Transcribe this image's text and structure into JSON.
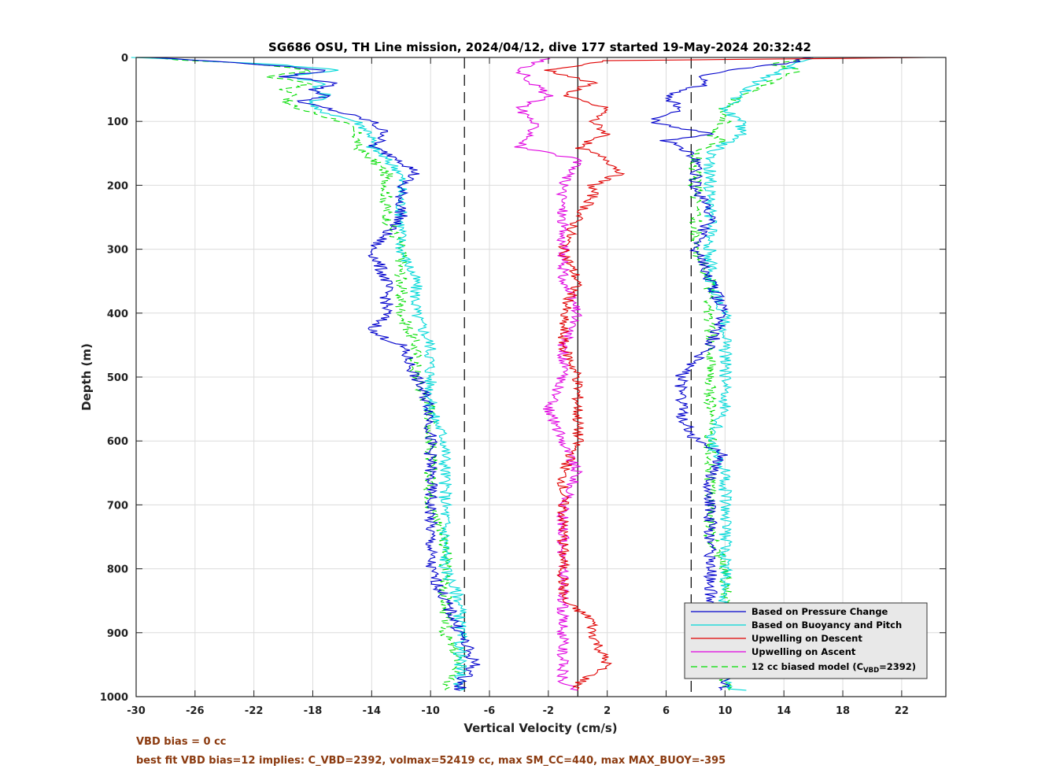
{
  "chart_data": {
    "type": "line",
    "title": "SG686 OSU, TH Line mission, 2024/04/12, dive 177 started 19-May-2024 20:32:42",
    "xlabel": "Vertical Velocity (cm/s)",
    "ylabel": "Depth (m)",
    "xlim": [
      -30,
      25
    ],
    "ylim": [
      0,
      1000
    ],
    "y_reversed": true,
    "x_ticks": [
      -30,
      -26,
      -22,
      -18,
      -14,
      -10,
      -6,
      -2,
      2,
      6,
      10,
      14,
      18,
      22
    ],
    "y_ticks": [
      0,
      100,
      200,
      300,
      400,
      500,
      600,
      700,
      800,
      900,
      1000
    ],
    "grid": true,
    "legend_position": "bottom-right",
    "reference_lines": [
      {
        "x": -7.7,
        "style": "dashed",
        "color": "#000000"
      },
      {
        "x": 0,
        "style": "solid",
        "color": "#000000"
      },
      {
        "x": 7.7,
        "style": "dashed",
        "color": "#000000"
      }
    ],
    "series": [
      {
        "name": "Based on Pressure Change",
        "color": "#0000cc",
        "dash": "solid",
        "down": {
          "depth": [
            0,
            10,
            20,
            30,
            40,
            50,
            60,
            70,
            80,
            100,
            120,
            140,
            160,
            180,
            200,
            250,
            300,
            350,
            400,
            430,
            450,
            500,
            550,
            590,
            600,
            650,
            700,
            750,
            800,
            850,
            900,
            950,
            980,
            990
          ],
          "velocity": [
            -29,
            -22,
            -17,
            -20,
            -16,
            -18,
            -17,
            -19,
            -17,
            -14,
            -13,
            -14,
            -12,
            -11,
            -12,
            -12,
            -14,
            -13,
            -13,
            -14,
            -12,
            -11,
            -10,
            -10,
            -10,
            -10,
            -10,
            -10,
            -10,
            -9,
            -8,
            -7,
            -8,
            -8
          ]
        },
        "up": {
          "depth": [
            990,
            980,
            950,
            900,
            850,
            800,
            750,
            700,
            650,
            620,
            600,
            560,
            540,
            500,
            450,
            400,
            350,
            300,
            250,
            200,
            160,
            140,
            130,
            120,
            100,
            80,
            60,
            40,
            30,
            20,
            10,
            0
          ],
          "velocity": [
            10,
            10,
            10,
            10,
            9,
            9,
            9,
            9,
            9,
            10,
            8,
            7,
            7,
            7,
            9,
            10,
            9,
            8,
            9,
            8,
            8,
            7,
            6,
            9,
            5,
            7,
            6,
            9,
            8,
            10,
            14,
            16
          ]
        }
      },
      {
        "name": "Based on Buoyancy and Pitch",
        "color": "#00d8d8",
        "dash": "solid",
        "down": {
          "depth": [
            0,
            10,
            20,
            30,
            40,
            50,
            60,
            70,
            80,
            100,
            120,
            140,
            160,
            180,
            200,
            250,
            300,
            350,
            400,
            450,
            500,
            550,
            600,
            650,
            700,
            750,
            800,
            850,
            900,
            950,
            980,
            990
          ],
          "velocity": [
            -30,
            -21,
            -16,
            -20,
            -17,
            -18,
            -17,
            -18,
            -18,
            -15,
            -14,
            -14,
            -13,
            -12,
            -12,
            -12,
            -12,
            -11,
            -11,
            -10,
            -10,
            -10,
            -9,
            -9,
            -9,
            -9,
            -9,
            -8,
            -8,
            -8,
            -8,
            -8
          ]
        },
        "up": {
          "depth": [
            990,
            980,
            950,
            900,
            850,
            800,
            750,
            700,
            650,
            600,
            550,
            500,
            450,
            400,
            350,
            300,
            250,
            200,
            150,
            120,
            100,
            80,
            60,
            40,
            30,
            20,
            10,
            0
          ],
          "velocity": [
            11,
            10,
            11,
            11,
            10,
            10,
            10,
            10,
            10,
            9,
            10,
            10,
            10,
            10,
            9,
            9,
            9,
            9,
            9,
            11,
            11,
            10,
            11,
            12,
            13,
            14,
            15,
            16
          ]
        }
      },
      {
        "name": "Upwelling on Descent",
        "color": "#e00000",
        "dash": "solid",
        "depth": [
          0,
          5,
          20,
          40,
          60,
          80,
          100,
          120,
          140,
          160,
          180,
          200,
          220,
          250,
          300,
          350,
          400,
          450,
          500,
          550,
          600,
          650,
          700,
          750,
          800,
          850,
          880,
          900,
          950,
          980,
          990
        ],
        "velocity": [
          24,
          2,
          -2,
          1,
          -1,
          2,
          1,
          2,
          0,
          2,
          3,
          1,
          1,
          0,
          -1,
          0,
          -1,
          -1,
          0,
          0,
          0,
          -1,
          -1,
          -1,
          -1,
          -1,
          1,
          1,
          2,
          0,
          0
        ]
      },
      {
        "name": "Upwelling on Ascent",
        "color": "#e000e0",
        "dash": "solid",
        "depth": [
          0,
          20,
          40,
          60,
          80,
          100,
          120,
          140,
          160,
          200,
          250,
          300,
          350,
          400,
          450,
          500,
          550,
          600,
          650,
          700,
          750,
          800,
          850,
          900,
          950,
          980,
          990
        ],
        "velocity": [
          -2,
          -4,
          -3,
          -2,
          -4,
          -3,
          -3,
          -4,
          0,
          -1,
          -1,
          -1,
          -1,
          0,
          -1,
          -1,
          -2,
          -1,
          0,
          -1,
          -1,
          -1,
          -1,
          -1,
          -1,
          -1,
          0
        ]
      },
      {
        "name": "12 cc biased model (C",
        "name_subscript": "VBD",
        "name_suffix": "=2392)",
        "color": "#00dd00",
        "dash": "dashed",
        "down": {
          "depth": [
            0,
            10,
            20,
            30,
            40,
            50,
            60,
            70,
            80,
            100,
            120,
            140,
            160,
            180,
            200,
            250,
            300,
            350,
            400,
            450,
            500,
            550,
            600,
            650,
            700,
            750,
            800,
            850,
            900,
            950,
            980,
            990
          ],
          "velocity": [
            -30,
            -22,
            -18,
            -21,
            -18,
            -20,
            -19,
            -20,
            -19,
            -16,
            -15,
            -15,
            -14,
            -13,
            -13,
            -13,
            -12,
            -12,
            -12,
            -11,
            -11,
            -10,
            -10,
            -10,
            -10,
            -9,
            -9,
            -9,
            -9,
            -8,
            -9,
            -9
          ]
        },
        "up": {
          "depth": [
            990,
            980,
            950,
            900,
            850,
            800,
            750,
            700,
            650,
            600,
            550,
            500,
            450,
            400,
            350,
            300,
            250,
            200,
            150,
            130,
            120,
            100,
            80,
            60,
            40,
            30,
            20,
            10,
            0
          ],
          "velocity": [
            10,
            10,
            10,
            10,
            10,
            10,
            9,
            9,
            9,
            9,
            9,
            9,
            9,
            9,
            9,
            8,
            8,
            8,
            8,
            10,
            9,
            10,
            10,
            11,
            13,
            14,
            15,
            13,
            16
          ]
        }
      }
    ],
    "annotations": [
      "VBD bias = 0 cc",
      "best fit VBD bias=12 implies: C_VBD=2392, volmax=52419 cc, max SM_CC=440, max MAX_BUOY=-395"
    ]
  }
}
